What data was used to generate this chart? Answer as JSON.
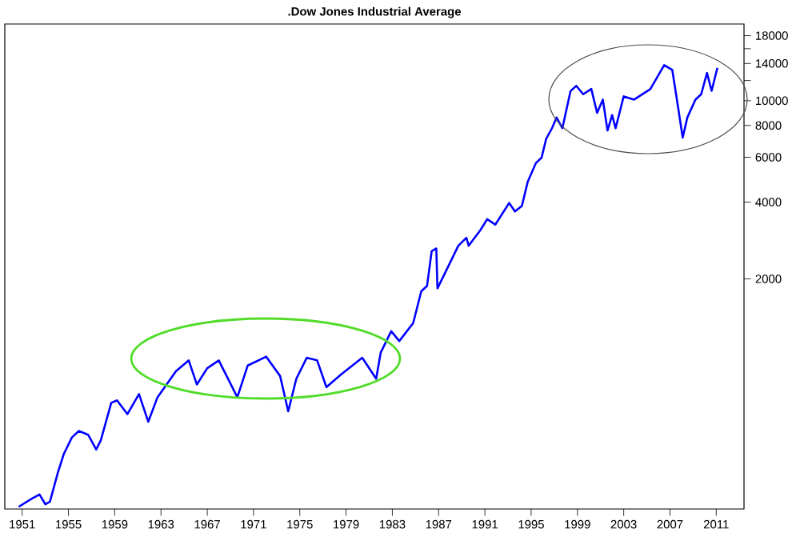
{
  "chart_data": {
    "type": "line",
    "title": ".Dow Jones Industrial Average",
    "x": [
      1950.7,
      1951.8,
      1952.5,
      1953.0,
      1953.4,
      1954.1,
      1954.6,
      1955.3,
      1955.9,
      1956.7,
      1957.4,
      1957.8,
      1958.7,
      1959.2,
      1960.1,
      1961.1,
      1961.9,
      1962.7,
      1964.3,
      1965.4,
      1966.1,
      1967.0,
      1968.0,
      1969.6,
      1970.5,
      1972.1,
      1973.3,
      1974.0,
      1974.7,
      1975.6,
      1976.5,
      1977.3,
      1978.6,
      1980.4,
      1981.6,
      1982.0,
      1982.9,
      1983.6,
      1984.8,
      1985.5,
      1986.0,
      1986.4,
      1986.8,
      1986.9,
      1987.8,
      1988.7,
      1989.4,
      1989.6,
      1990.6,
      1991.2,
      1991.9,
      1993.1,
      1993.6,
      1994.2,
      1994.7,
      1995.4,
      1995.9,
      1996.3,
      1996.8,
      1997.2,
      1997.7,
      1998.4,
      1998.9,
      1999.5,
      2000.2,
      2000.7,
      2001.2,
      2001.6,
      2002.0,
      2002.3,
      2003.0,
      2003.9,
      2005.3,
      2006.5,
      2007.2,
      2007.6,
      2008.1,
      2008.5,
      2009.2,
      2009.7,
      2010.2,
      2010.6,
      2011.1
    ],
    "series": [
      {
        "color": "#0000ff",
        "values": [
          255,
          274,
          285,
          261,
          267,
          349,
          411,
          477,
          506,
          489,
          428,
          465,
          652,
          667,
          589,
          706,
          550,
          686,
          869,
          957,
          770,
          892,
          957,
          686,
          914,
          990,
          831,
          604,
          811,
          980,
          957,
          752,
          846,
          980,
          811,
          1029,
          1246,
          1140,
          1340,
          1787,
          1877,
          2568,
          2631,
          1835,
          2222,
          2697,
          2898,
          2697,
          3101,
          3428,
          3264,
          3970,
          3677,
          3868,
          4800,
          5687,
          5977,
          7090,
          7798,
          8590,
          7798,
          10900,
          11440,
          10600,
          11120,
          8960,
          10100,
          7640,
          8780,
          7800,
          10400,
          10100,
          11100,
          13800,
          13200,
          10100,
          7160,
          8590,
          10100,
          10600,
          12850,
          10930,
          13460
        ]
      }
    ],
    "log": "y",
    "xlim": [
      1949.5,
      2013.4
    ],
    "ylim": [
      250,
      20000
    ],
    "xticks": [
      1951,
      1955,
      1959,
      1963,
      1967,
      1971,
      1975,
      1979,
      1983,
      1987,
      1991,
      1995,
      1999,
      2003,
      2007,
      2011
    ],
    "yticks": [
      2000,
      4000,
      6000,
      8000,
      10000,
      {
        "value": 12000,
        "label": null
      },
      14000,
      {
        "value": 16000,
        "label": null
      },
      18000
    ],
    "grid": false,
    "marker": "none",
    "line_style": "solid"
  }
}
